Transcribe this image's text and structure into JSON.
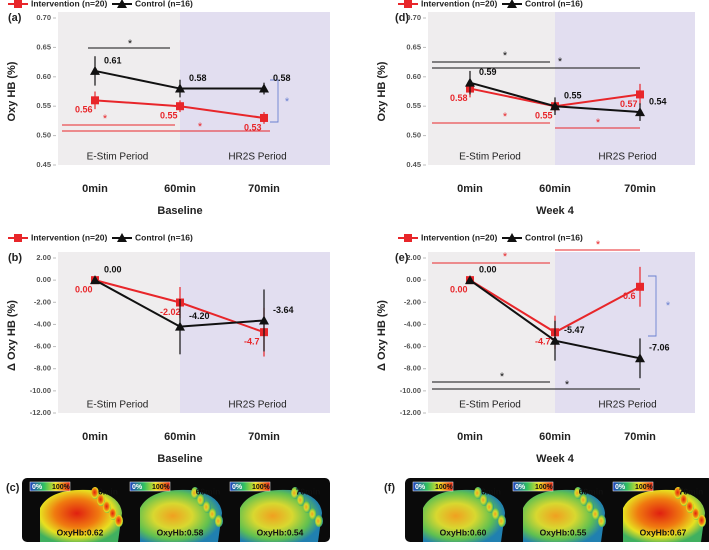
{
  "chart_data": [
    {
      "type": "line",
      "panel_label": "(a)",
      "xlabel": "Baseline",
      "ylabel": "Oxy HB (%)",
      "categories": [
        "0min",
        "60min",
        "70min"
      ],
      "ylim": [
        0.45,
        0.7
      ],
      "yticks": [
        {
          "value": 0.45,
          "label": "0.45"
        },
        {
          "value": 0.5,
          "label": "0.50"
        },
        {
          "value": 0.55,
          "label": "0.55"
        },
        {
          "value": 0.6,
          "label": "0.60"
        },
        {
          "value": 0.65,
          "label": "0.65"
        },
        {
          "value": 0.7,
          "label": "0.70"
        }
      ],
      "periods": [
        "E-Stim Period",
        "HR2S Period"
      ],
      "significance": [
        "*",
        "*",
        "*",
        "*"
      ],
      "series": [
        {
          "name": "Intervention (n=20)",
          "color": "#e8262a",
          "values": [
            0.56,
            0.55,
            0.53
          ],
          "errors": [
            0.015,
            0.01,
            0.01
          ]
        },
        {
          "name": "Control (n=16)",
          "color": "#111111",
          "values": [
            0.61,
            0.58,
            0.58
          ],
          "errors": [
            0.025,
            0.015,
            0.01
          ]
        }
      ]
    },
    {
      "type": "line",
      "panel_label": "(b)",
      "xlabel": "Baseline",
      "ylabel": "Δ Oxy HB (%)",
      "categories": [
        "0min",
        "60min",
        "70min"
      ],
      "ylim": [
        -12,
        2
      ],
      "yticks": [
        {
          "value": -12,
          "label": "-12.00"
        },
        {
          "value": -10,
          "label": "-10.00"
        },
        {
          "value": -8,
          "label": "-8.00"
        },
        {
          "value": -6,
          "label": "-6.00"
        },
        {
          "value": -4,
          "label": "-4.00"
        },
        {
          "value": -2,
          "label": "-2.00"
        },
        {
          "value": 0,
          "label": "0.00"
        },
        {
          "value": 2,
          "label": "2.00"
        }
      ],
      "periods": [
        "E-Stim Period",
        "HR2S Period"
      ],
      "significance": [],
      "series": [
        {
          "name": "Intervention (n=20)",
          "color": "#e8262a",
          "values": [
            0,
            -2.02,
            -4.7
          ],
          "value_labels": [
            "0.00",
            "-2.02",
            "-4.7"
          ],
          "errors": [
            0,
            1.4,
            2.2
          ]
        },
        {
          "name": "Control (n=16)",
          "color": "#111111",
          "values": [
            0,
            -4.2,
            -3.64
          ],
          "value_labels": [
            "0.00",
            "-4.20",
            "-3.64"
          ],
          "errors": [
            0,
            2.5,
            2.8
          ]
        }
      ]
    },
    {
      "type": "line",
      "panel_label": "(d)",
      "xlabel": "Week 4",
      "ylabel": "Oxy HB (%)",
      "categories": [
        "0min",
        "60min",
        "70min"
      ],
      "ylim": [
        0.45,
        0.7
      ],
      "yticks": [
        {
          "value": 0.45,
          "label": "0.45"
        },
        {
          "value": 0.5,
          "label": "0.50"
        },
        {
          "value": 0.55,
          "label": "0.55"
        },
        {
          "value": 0.6,
          "label": "0.60"
        },
        {
          "value": 0.65,
          "label": "0.65"
        },
        {
          "value": 0.7,
          "label": "0.70"
        }
      ],
      "periods": [
        "E-Stim Period",
        "HR2S Period"
      ],
      "significance": [
        "*",
        "*",
        "*",
        "*"
      ],
      "series": [
        {
          "name": "Intervention (n=20)",
          "color": "#e8262a",
          "values": [
            0.58,
            0.55,
            0.57
          ],
          "errors": [
            0.015,
            0.01,
            0.018
          ]
        },
        {
          "name": "Control (n=16)",
          "color": "#111111",
          "values": [
            0.59,
            0.55,
            0.54
          ],
          "errors": [
            0.02,
            0.015,
            0.015
          ]
        }
      ]
    },
    {
      "type": "line",
      "panel_label": "(e)",
      "xlabel": "Week 4",
      "ylabel": "Δ Oxy HB (%)",
      "categories": [
        "0min",
        "60min",
        "70min"
      ],
      "ylim": [
        -12,
        2
      ],
      "yticks": [
        {
          "value": -12,
          "label": "-12.00"
        },
        {
          "value": -10,
          "label": "-10.00"
        },
        {
          "value": -8,
          "label": "-8.00"
        },
        {
          "value": -6,
          "label": "-6.00"
        },
        {
          "value": -4,
          "label": "-4.00"
        },
        {
          "value": -2,
          "label": "-2.00"
        },
        {
          "value": 0,
          "label": "0.00"
        },
        {
          "value": 2,
          "label": "2.00"
        }
      ],
      "periods": [
        "E-Stim Period",
        "HR2S Period"
      ],
      "significance": [
        "*",
        "*",
        "*",
        "*",
        "*"
      ],
      "series": [
        {
          "name": "Intervention (n=20)",
          "color": "#e8262a",
          "values": [
            0,
            -4.71,
            -0.6
          ],
          "value_labels": [
            "0.00",
            "-4.71",
            "-0.6"
          ],
          "errors": [
            0,
            1.5,
            1.8
          ]
        },
        {
          "name": "Control (n=16)",
          "color": "#111111",
          "values": [
            0,
            -5.47,
            -7.06
          ],
          "value_labels": [
            "0.00",
            "-5.47",
            "-7.06"
          ],
          "errors": [
            0,
            1.8,
            1.8
          ]
        }
      ]
    }
  ],
  "image_panels": [
    {
      "label": "(c)",
      "images": [
        {
          "scale": [
            "0%",
            "100%"
          ],
          "time": "0min",
          "caption": "OxyHb:0.62"
        },
        {
          "scale": [
            "0%",
            "100%"
          ],
          "time": "60min",
          "caption": "OxyHb:0.58"
        },
        {
          "scale": [
            "0%",
            "100%"
          ],
          "time": "70min",
          "caption": "OxyHb:0.54"
        }
      ]
    },
    {
      "label": "(f)",
      "images": [
        {
          "scale": [
            "0%",
            "100%"
          ],
          "time": "0min",
          "caption": "OxyHb:0.60"
        },
        {
          "scale": [
            "0%",
            "100%"
          ],
          "time": "60min",
          "caption": "OxyHb:0.55"
        },
        {
          "scale": [
            "0%",
            "100%"
          ],
          "time": "70min",
          "caption": "OxyHb:0.67"
        }
      ]
    }
  ]
}
